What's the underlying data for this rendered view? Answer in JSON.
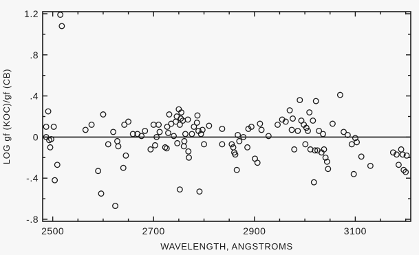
{
  "chart_data": {
    "type": "scatter",
    "xlabel": "WAVELENGTH, ANGSTROMS",
    "ylabel": "LOG gf (KOC)/gf (CB)",
    "xlim": [
      2480,
      3210
    ],
    "ylim": [
      -0.82,
      1.22
    ],
    "x_ticks": [
      2500,
      2700,
      2900,
      3100
    ],
    "x_tick_labels": [
      "2500",
      "2700",
      "2900",
      "3100"
    ],
    "y_ticks": [
      1.2,
      0.8,
      0.4,
      0,
      -0.4,
      -0.8
    ],
    "y_tick_labels": [
      "1.2",
      ".8",
      ".4",
      "0",
      "-.4",
      "-.8"
    ],
    "reference_line_y": 0,
    "grid": false,
    "points": [
      {
        "x": 2487,
        "y": 0.1
      },
      {
        "x": 2487,
        "y": 0.0
      },
      {
        "x": 2491,
        "y": 0.25
      },
      {
        "x": 2493,
        "y": -0.03
      },
      {
        "x": 2495,
        "y": -0.1
      },
      {
        "x": 2497,
        "y": -0.02
      },
      {
        "x": 2502,
        "y": 0.1
      },
      {
        "x": 2504,
        "y": -0.42
      },
      {
        "x": 2509,
        "y": -0.27
      },
      {
        "x": 2515,
        "y": 1.19
      },
      {
        "x": 2518,
        "y": 1.08
      },
      {
        "x": 2565,
        "y": 0.07
      },
      {
        "x": 2577,
        "y": 0.12
      },
      {
        "x": 2590,
        "y": -0.33
      },
      {
        "x": 2596,
        "y": -0.55
      },
      {
        "x": 2600,
        "y": 0.22
      },
      {
        "x": 2610,
        "y": -0.07
      },
      {
        "x": 2620,
        "y": 0.05
      },
      {
        "x": 2624,
        "y": -0.67
      },
      {
        "x": 2630,
        "y": -0.09
      },
      {
        "x": 2628,
        "y": -0.04
      },
      {
        "x": 2640,
        "y": -0.3
      },
      {
        "x": 2642,
        "y": 0.12
      },
      {
        "x": 2645,
        "y": -0.18
      },
      {
        "x": 2650,
        "y": 0.15
      },
      {
        "x": 2659,
        "y": 0.03
      },
      {
        "x": 2668,
        "y": 0.03
      },
      {
        "x": 2676,
        "y": 0.01
      },
      {
        "x": 2683,
        "y": 0.06
      },
      {
        "x": 2694,
        "y": -0.12
      },
      {
        "x": 2700,
        "y": 0.12
      },
      {
        "x": 2703,
        "y": -0.08
      },
      {
        "x": 2706,
        "y": 0.0
      },
      {
        "x": 2710,
        "y": 0.12
      },
      {
        "x": 2712,
        "y": 0.05
      },
      {
        "x": 2723,
        "y": -0.1
      },
      {
        "x": 2726,
        "y": -0.11
      },
      {
        "x": 2727,
        "y": 0.1
      },
      {
        "x": 2729,
        "y": 0.04
      },
      {
        "x": 2731,
        "y": 0.22
      },
      {
        "x": 2735,
        "y": 0.13
      },
      {
        "x": 2740,
        "y": 0.01
      },
      {
        "x": 2744,
        "y": 0.15
      },
      {
        "x": 2746,
        "y": 0.2
      },
      {
        "x": 2747,
        "y": -0.06
      },
      {
        "x": 2750,
        "y": 0.27
      },
      {
        "x": 2752,
        "y": 0.12
      },
      {
        "x": 2754,
        "y": 0.18
      },
      {
        "x": 2755,
        "y": 0.24
      },
      {
        "x": 2752,
        "y": -0.51
      },
      {
        "x": 2758,
        "y": 0.16
      },
      {
        "x": 2760,
        "y": -0.09
      },
      {
        "x": 2761,
        "y": -0.04
      },
      {
        "x": 2763,
        "y": 0.03
      },
      {
        "x": 2768,
        "y": 0.17
      },
      {
        "x": 2769,
        "y": -0.14
      },
      {
        "x": 2770,
        "y": -0.2
      },
      {
        "x": 2776,
        "y": 0.03
      },
      {
        "x": 2780,
        "y": 0.1
      },
      {
        "x": 2786,
        "y": 0.14
      },
      {
        "x": 2787,
        "y": 0.21
      },
      {
        "x": 2789,
        "y": 0.06
      },
      {
        "x": 2791,
        "y": -0.53
      },
      {
        "x": 2794,
        "y": 0.03
      },
      {
        "x": 2797,
        "y": 0.07
      },
      {
        "x": 2800,
        "y": -0.07
      },
      {
        "x": 2810,
        "y": 0.11
      },
      {
        "x": 2836,
        "y": 0.08
      },
      {
        "x": 2836,
        "y": -0.07
      },
      {
        "x": 2855,
        "y": -0.07
      },
      {
        "x": 2858,
        "y": -0.1
      },
      {
        "x": 2860,
        "y": -0.15
      },
      {
        "x": 2862,
        "y": -0.17
      },
      {
        "x": 2865,
        "y": -0.32
      },
      {
        "x": 2867,
        "y": 0.02
      },
      {
        "x": 2870,
        "y": -0.04
      },
      {
        "x": 2878,
        "y": 0.0
      },
      {
        "x": 2886,
        "y": -0.1
      },
      {
        "x": 2888,
        "y": 0.08
      },
      {
        "x": 2894,
        "y": 0.1
      },
      {
        "x": 2901,
        "y": -0.21
      },
      {
        "x": 2906,
        "y": -0.25
      },
      {
        "x": 2911,
        "y": 0.13
      },
      {
        "x": 2914,
        "y": 0.07
      },
      {
        "x": 2928,
        "y": 0.01
      },
      {
        "x": 2946,
        "y": 0.12
      },
      {
        "x": 2955,
        "y": 0.17
      },
      {
        "x": 2962,
        "y": 0.15
      },
      {
        "x": 2970,
        "y": 0.26
      },
      {
        "x": 2974,
        "y": 0.07
      },
      {
        "x": 2976,
        "y": 0.18
      },
      {
        "x": 2979,
        "y": -0.12
      },
      {
        "x": 2986,
        "y": 0.06
      },
      {
        "x": 2990,
        "y": 0.36
      },
      {
        "x": 2993,
        "y": 0.16
      },
      {
        "x": 2998,
        "y": 0.12
      },
      {
        "x": 3001,
        "y": -0.07
      },
      {
        "x": 3003,
        "y": 0.09
      },
      {
        "x": 3006,
        "y": 0.06
      },
      {
        "x": 3009,
        "y": 0.24
      },
      {
        "x": 3011,
        "y": -0.12
      },
      {
        "x": 3016,
        "y": 0.16
      },
      {
        "x": 3018,
        "y": -0.44
      },
      {
        "x": 3020,
        "y": -0.13
      },
      {
        "x": 3022,
        "y": 0.35
      },
      {
        "x": 3025,
        "y": -0.13
      },
      {
        "x": 3028,
        "y": 0.06
      },
      {
        "x": 3033,
        "y": -0.15
      },
      {
        "x": 3036,
        "y": 0.03
      },
      {
        "x": 3038,
        "y": -0.12
      },
      {
        "x": 3041,
        "y": -0.2
      },
      {
        "x": 3044,
        "y": -0.24
      },
      {
        "x": 3046,
        "y": -0.31
      },
      {
        "x": 3055,
        "y": 0.13
      },
      {
        "x": 3070,
        "y": 0.41
      },
      {
        "x": 3077,
        "y": 0.05
      },
      {
        "x": 3085,
        "y": 0.02
      },
      {
        "x": 3093,
        "y": -0.07
      },
      {
        "x": 3097,
        "y": -0.36
      },
      {
        "x": 3100,
        "y": -0.01
      },
      {
        "x": 3103,
        "y": -0.05
      },
      {
        "x": 3112,
        "y": -0.19
      },
      {
        "x": 3130,
        "y": -0.28
      },
      {
        "x": 3175,
        "y": -0.15
      },
      {
        "x": 3182,
        "y": -0.17
      },
      {
        "x": 3186,
        "y": -0.27
      },
      {
        "x": 3191,
        "y": -0.12
      },
      {
        "x": 3194,
        "y": -0.17
      },
      {
        "x": 3196,
        "y": -0.32
      },
      {
        "x": 3200,
        "y": -0.34
      },
      {
        "x": 3202,
        "y": -0.18
      }
    ]
  }
}
